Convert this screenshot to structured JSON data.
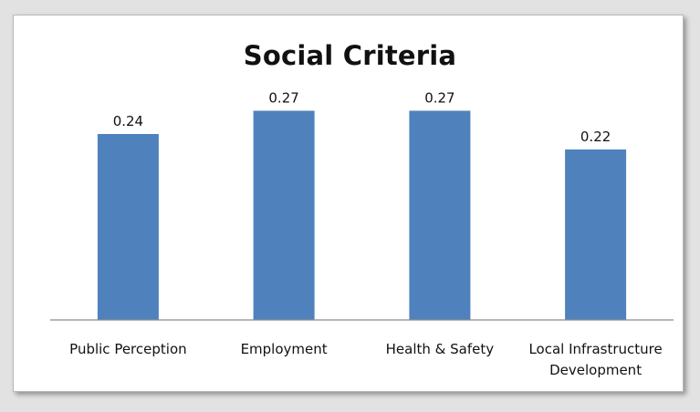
{
  "chart_data": {
    "type": "bar",
    "title": "Social Criteria",
    "categories": [
      "Public Perception",
      "Employment",
      "Health & Safety",
      "Local Infrastructure Development"
    ],
    "category_lines": [
      [
        "Public Perception"
      ],
      [
        "Employment"
      ],
      [
        "Health & Safety"
      ],
      [
        "Local Infrastructure",
        "Development"
      ]
    ],
    "values": [
      0.24,
      0.27,
      0.27,
      0.22
    ],
    "data_labels": [
      "0.24",
      "0.27",
      "0.27",
      "0.22"
    ],
    "xlabel": "",
    "ylabel": "",
    "ylim": [
      0,
      0.3
    ],
    "grid": false,
    "legend": "none",
    "bar_color": "#4f81bd"
  }
}
